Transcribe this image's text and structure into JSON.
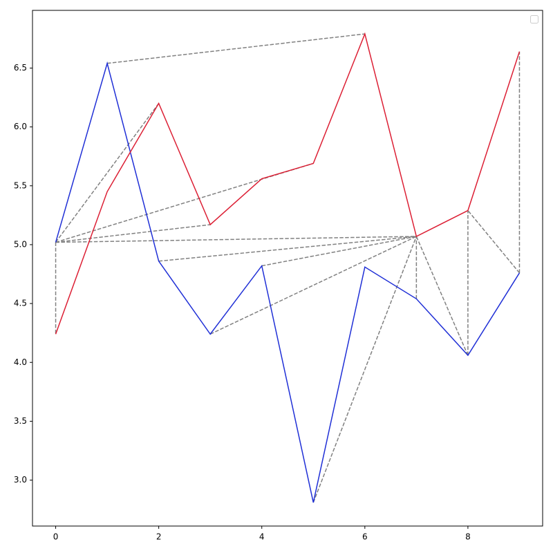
{
  "chart_data": {
    "type": "line",
    "x": [
      0,
      1,
      2,
      3,
      4,
      5,
      6,
      7,
      8,
      9
    ],
    "series": [
      {
        "color": "#1f2fd6",
        "values": [
          5.02,
          6.54,
          4.86,
          4.24,
          4.82,
          2.81,
          4.81,
          4.54,
          4.06,
          4.76
        ]
      },
      {
        "color": "#dc1f34",
        "values": [
          4.24,
          5.45,
          6.2,
          5.17,
          5.56,
          5.69,
          6.79,
          5.07,
          5.29,
          6.64
        ]
      }
    ],
    "links": [
      [
        0,
        0
      ],
      [
        0,
        2
      ],
      [
        0,
        5
      ],
      [
        0,
        3
      ],
      [
        0,
        7
      ],
      [
        1,
        6
      ],
      [
        2,
        7
      ],
      [
        3,
        7
      ],
      [
        4,
        7
      ],
      [
        5,
        7
      ],
      [
        7,
        7
      ],
      [
        8,
        7
      ],
      [
        8,
        8
      ],
      [
        9,
        9
      ],
      [
        9,
        8
      ]
    ],
    "link_color": "#808080",
    "xlim": [
      -0.45,
      9.45
    ],
    "xticks": [
      0,
      2,
      4,
      6,
      8
    ],
    "ylim": [
      2.61,
      6.99
    ],
    "yticks": [
      {
        "value": 3,
        "label": "3.0"
      },
      {
        "value": 3.5,
        "label": "3.5"
      },
      {
        "value": 4,
        "label": "4.0"
      },
      {
        "value": 4.5,
        "label": "4.5"
      },
      {
        "value": 5,
        "label": "5.0"
      },
      {
        "value": 5.5,
        "label": "5.5"
      },
      {
        "value": 6,
        "label": "6.0"
      },
      {
        "value": 6.5,
        "label": "6.5"
      }
    ],
    "grid": false
  }
}
